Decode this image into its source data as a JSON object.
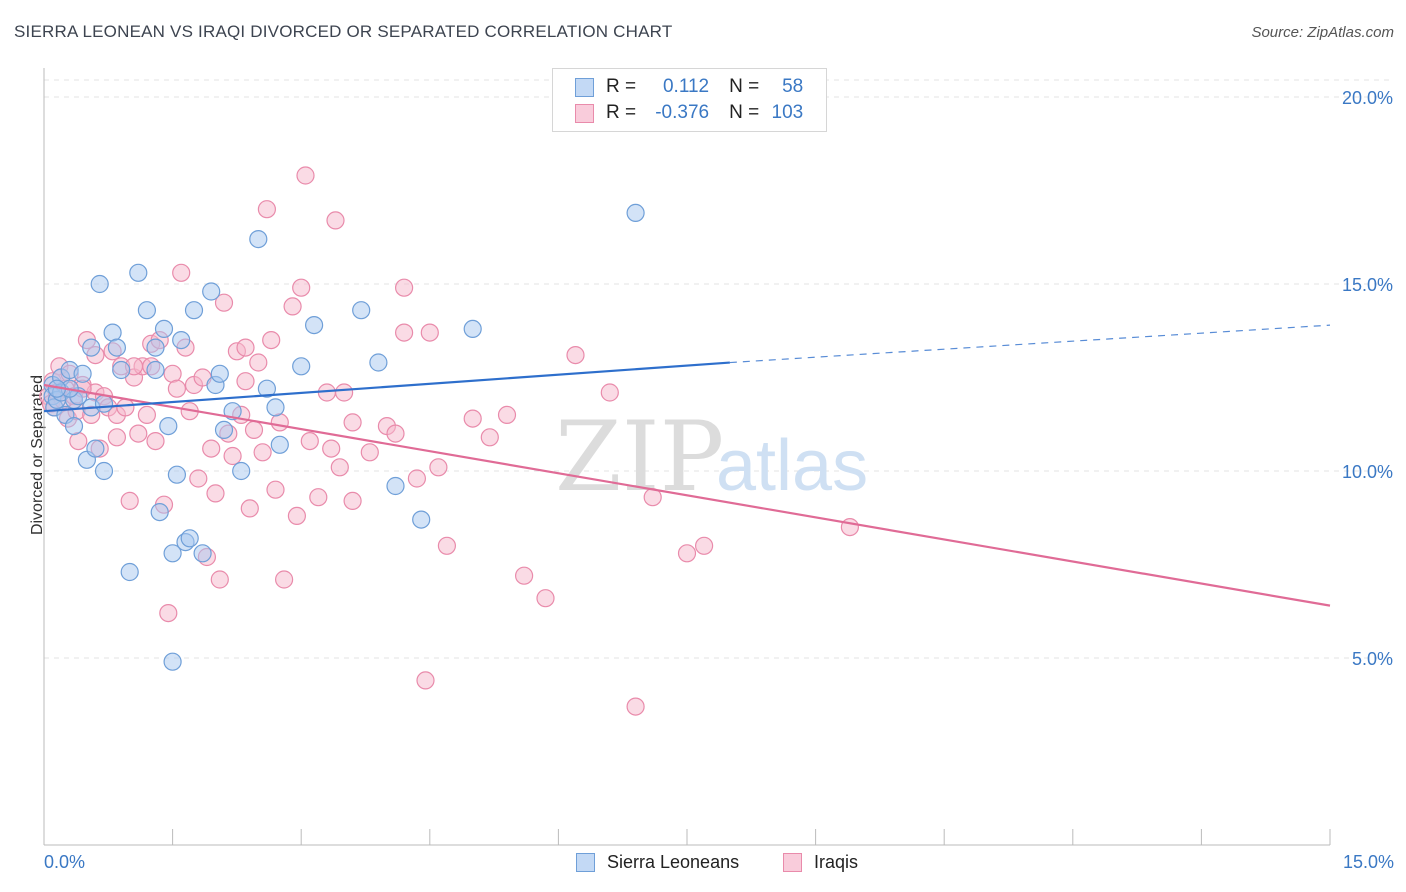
{
  "header": {
    "title": "SIERRA LEONEAN VS IRAQI DIVORCED OR SEPARATED CORRELATION CHART",
    "source": "Source: ZipAtlas.com"
  },
  "colors": {
    "blue_fill": "#a7c8f0",
    "blue_stroke": "#6f9fd8",
    "blue_line": "#2e6fcc",
    "pink_fill": "#f6b8cc",
    "pink_stroke": "#e98bab",
    "pink_line": "#e06b96",
    "axis_text": "#3a78c4",
    "grid": "#e3e3e3"
  },
  "legend": {
    "rows": [
      {
        "r_label": "R =",
        "r_value": "0.112",
        "n_label": "N =",
        "n_value": "58"
      },
      {
        "r_label": "R =",
        "r_value": "-0.376",
        "n_label": "N =",
        "n_value": "103"
      }
    ],
    "bottom": [
      "Sierra Leoneans",
      "Iraqis"
    ]
  },
  "watermark": {
    "zip": "ZIP",
    "atlas": "atlas"
  },
  "chart_data": {
    "type": "scatter",
    "title": "SIERRA LEONEAN VS IRAQI DIVORCED OR SEPARATED CORRELATION CHART",
    "xlabel": "",
    "ylabel": "Divorced or Separated",
    "xlim": [
      0,
      15
    ],
    "ylim": [
      0,
      21
    ],
    "x_tick_labels": [
      "0.0%",
      "15.0%"
    ],
    "y_ticks": [
      5,
      10,
      15,
      20
    ],
    "y_tick_labels": [
      "5.0%",
      "10.0%",
      "15.0%",
      "20.0%"
    ],
    "grid": true,
    "legend_position": "top-center",
    "series": [
      {
        "name": "Sierra Leoneans",
        "trend": {
          "x": [
            0.0,
            8.0
          ],
          "y": [
            11.6,
            12.9
          ],
          "dashed_to": [
            15.0,
            13.9
          ]
        },
        "points": [
          [
            0.1,
            12.3
          ],
          [
            0.1,
            12.0
          ],
          [
            0.12,
            11.7
          ],
          [
            0.15,
            11.9
          ],
          [
            0.2,
            12.5
          ],
          [
            0.2,
            12.1
          ],
          [
            0.25,
            11.5
          ],
          [
            0.3,
            12.7
          ],
          [
            0.35,
            11.2
          ],
          [
            0.35,
            11.9
          ],
          [
            0.4,
            12.0
          ],
          [
            0.45,
            12.6
          ],
          [
            0.5,
            10.3
          ],
          [
            0.55,
            13.3
          ],
          [
            0.55,
            11.7
          ],
          [
            0.6,
            10.6
          ],
          [
            0.65,
            15.0
          ],
          [
            0.7,
            11.8
          ],
          [
            0.7,
            10.0
          ],
          [
            0.8,
            13.7
          ],
          [
            0.85,
            13.3
          ],
          [
            0.9,
            12.7
          ],
          [
            1.0,
            7.3
          ],
          [
            1.1,
            15.3
          ],
          [
            1.2,
            14.3
          ],
          [
            1.3,
            12.7
          ],
          [
            1.3,
            13.3
          ],
          [
            1.35,
            8.9
          ],
          [
            1.4,
            13.8
          ],
          [
            1.45,
            11.2
          ],
          [
            1.5,
            4.9
          ],
          [
            1.5,
            7.8
          ],
          [
            1.55,
            9.9
          ],
          [
            1.6,
            13.5
          ],
          [
            1.65,
            8.1
          ],
          [
            1.7,
            8.2
          ],
          [
            1.75,
            14.3
          ],
          [
            1.85,
            7.8
          ],
          [
            1.95,
            14.8
          ],
          [
            2.0,
            12.3
          ],
          [
            2.05,
            12.6
          ],
          [
            2.1,
            11.1
          ],
          [
            2.2,
            11.6
          ],
          [
            2.3,
            10.0
          ],
          [
            2.5,
            16.2
          ],
          [
            2.6,
            12.2
          ],
          [
            2.7,
            11.7
          ],
          [
            2.75,
            10.7
          ],
          [
            3.0,
            12.8
          ],
          [
            3.15,
            13.9
          ],
          [
            3.7,
            14.3
          ],
          [
            3.9,
            12.9
          ],
          [
            4.1,
            9.6
          ],
          [
            4.4,
            8.7
          ],
          [
            5.0,
            13.8
          ],
          [
            6.9,
            16.9
          ],
          [
            0.3,
            12.2
          ],
          [
            0.15,
            12.2
          ]
        ]
      },
      {
        "name": "Iraqis",
        "trend": {
          "x": [
            0.0,
            15.0
          ],
          "y": [
            12.3,
            6.4
          ]
        },
        "points": [
          [
            0.05,
            12.0
          ],
          [
            0.08,
            11.8
          ],
          [
            0.1,
            12.4
          ],
          [
            0.12,
            11.7
          ],
          [
            0.15,
            12.1
          ],
          [
            0.18,
            12.8
          ],
          [
            0.2,
            12.5
          ],
          [
            0.22,
            11.9
          ],
          [
            0.25,
            12.2
          ],
          [
            0.28,
            11.4
          ],
          [
            0.3,
            12.6
          ],
          [
            0.35,
            12.0
          ],
          [
            0.38,
            11.6
          ],
          [
            0.4,
            10.8
          ],
          [
            0.45,
            12.3
          ],
          [
            0.5,
            13.5
          ],
          [
            0.55,
            11.5
          ],
          [
            0.6,
            12.1
          ],
          [
            0.65,
            10.6
          ],
          [
            0.7,
            12.0
          ],
          [
            0.75,
            11.7
          ],
          [
            0.8,
            13.2
          ],
          [
            0.85,
            11.5
          ],
          [
            0.9,
            12.8
          ],
          [
            0.95,
            11.7
          ],
          [
            1.0,
            9.2
          ],
          [
            1.05,
            12.5
          ],
          [
            1.1,
            11.0
          ],
          [
            1.15,
            12.8
          ],
          [
            1.2,
            11.5
          ],
          [
            1.25,
            13.4
          ],
          [
            1.3,
            10.8
          ],
          [
            1.35,
            13.5
          ],
          [
            1.4,
            9.1
          ],
          [
            1.45,
            6.2
          ],
          [
            1.5,
            12.6
          ],
          [
            1.55,
            12.2
          ],
          [
            1.6,
            15.3
          ],
          [
            1.65,
            13.3
          ],
          [
            1.7,
            11.6
          ],
          [
            1.75,
            12.3
          ],
          [
            1.8,
            9.8
          ],
          [
            1.85,
            12.5
          ],
          [
            1.9,
            7.7
          ],
          [
            1.95,
            10.6
          ],
          [
            2.0,
            9.4
          ],
          [
            2.05,
            7.1
          ],
          [
            2.1,
            14.5
          ],
          [
            2.15,
            11.0
          ],
          [
            2.2,
            10.4
          ],
          [
            2.25,
            13.2
          ],
          [
            2.3,
            11.5
          ],
          [
            2.35,
            13.3
          ],
          [
            2.4,
            9.0
          ],
          [
            2.45,
            11.1
          ],
          [
            2.5,
            12.9
          ],
          [
            2.55,
            10.5
          ],
          [
            2.6,
            17.0
          ],
          [
            2.65,
            13.5
          ],
          [
            2.7,
            9.5
          ],
          [
            2.75,
            11.3
          ],
          [
            2.8,
            7.1
          ],
          [
            2.9,
            14.4
          ],
          [
            2.95,
            8.8
          ],
          [
            3.0,
            14.9
          ],
          [
            3.05,
            17.9
          ],
          [
            3.1,
            10.8
          ],
          [
            3.2,
            9.3
          ],
          [
            3.3,
            12.1
          ],
          [
            3.35,
            10.6
          ],
          [
            3.4,
            16.7
          ],
          [
            3.45,
            10.1
          ],
          [
            3.5,
            12.1
          ],
          [
            3.6,
            9.2
          ],
          [
            3.8,
            10.5
          ],
          [
            4.0,
            11.2
          ],
          [
            4.1,
            11.0
          ],
          [
            4.2,
            14.9
          ],
          [
            4.35,
            9.8
          ],
          [
            4.45,
            4.4
          ],
          [
            4.5,
            13.7
          ],
          [
            4.6,
            10.1
          ],
          [
            4.7,
            8.0
          ],
          [
            5.0,
            11.4
          ],
          [
            5.2,
            10.9
          ],
          [
            5.4,
            11.5
          ],
          [
            5.6,
            7.2
          ],
          [
            5.85,
            6.6
          ],
          [
            6.2,
            13.1
          ],
          [
            6.6,
            12.1
          ],
          [
            6.9,
            3.7
          ],
          [
            7.1,
            9.3
          ],
          [
            7.5,
            7.8
          ],
          [
            7.7,
            8.0
          ],
          [
            9.4,
            8.5
          ],
          [
            4.2,
            13.7
          ],
          [
            0.6,
            13.1
          ],
          [
            1.25,
            12.8
          ],
          [
            0.45,
            12.2
          ],
          [
            0.85,
            10.9
          ],
          [
            2.35,
            12.4
          ],
          [
            3.6,
            11.3
          ],
          [
            1.05,
            12.8
          ]
        ]
      }
    ]
  }
}
